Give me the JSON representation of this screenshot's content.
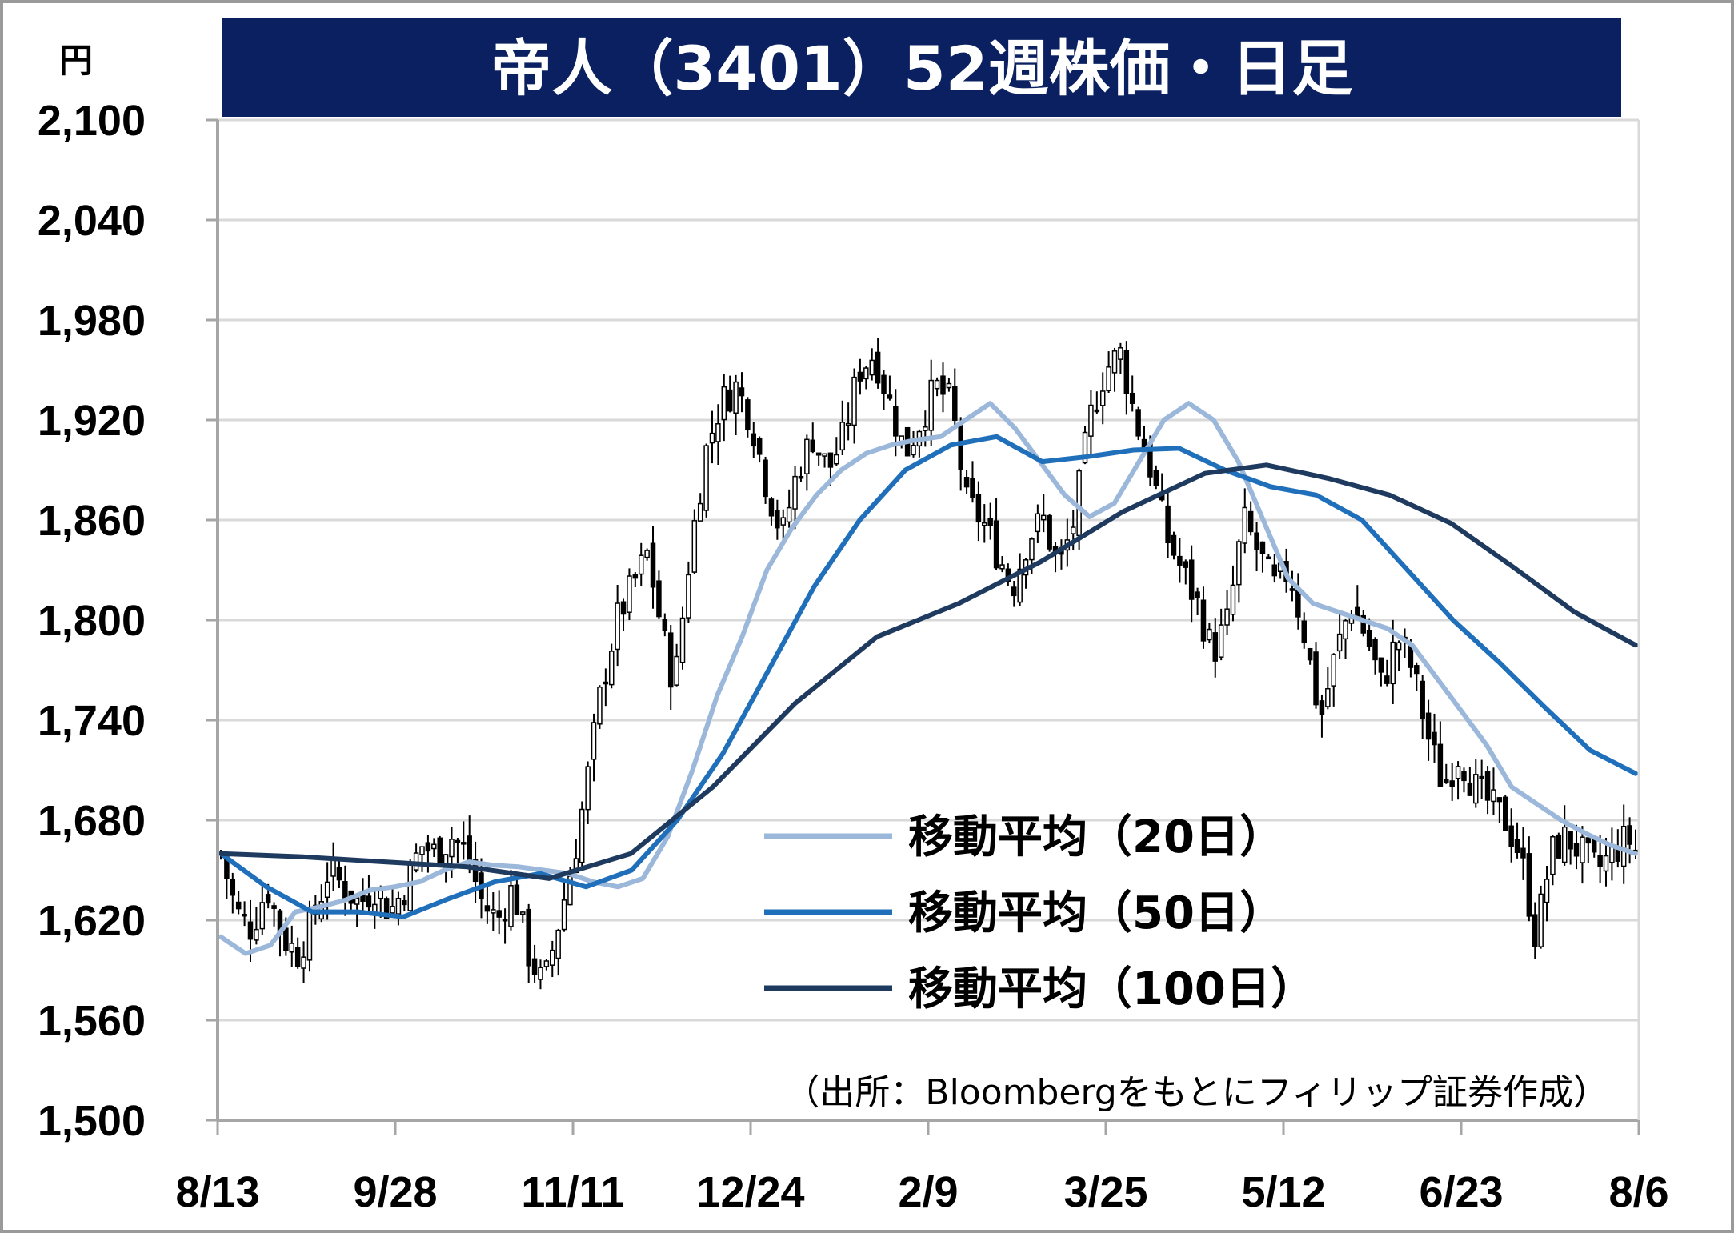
{
  "chart_data": {
    "type": "candlestick",
    "title": "帝人（3401）52週株価・日足",
    "unit_label": "円",
    "ylim": [
      1500,
      2100
    ],
    "y_ticks": [
      "2,100",
      "2,040",
      "1,980",
      "1,920",
      "1,860",
      "1,800",
      "1,740",
      "1,680",
      "1,620",
      "1,560",
      "1,500"
    ],
    "y_tick_values": [
      2100,
      2040,
      1980,
      1920,
      1860,
      1800,
      1740,
      1680,
      1620,
      1560,
      1500
    ],
    "x_ticks": [
      "8/13",
      "9/28",
      "11/11",
      "12/24",
      "2/9",
      "3/25",
      "5/12",
      "6/23",
      "8/6"
    ],
    "trading_days": 240,
    "close_path": [
      [
        0,
        1660
      ],
      [
        4,
        1625
      ],
      [
        8,
        1615
      ],
      [
        12,
        1640
      ],
      [
        16,
        1610
      ],
      [
        20,
        1600
      ],
      [
        24,
        1620
      ],
      [
        28,
        1650
      ],
      [
        32,
        1640
      ],
      [
        36,
        1630
      ],
      [
        40,
        1640
      ],
      [
        44,
        1625
      ],
      [
        48,
        1640
      ],
      [
        52,
        1665
      ],
      [
        56,
        1660
      ],
      [
        60,
        1670
      ],
      [
        64,
        1660
      ],
      [
        68,
        1630
      ],
      [
        72,
        1620
      ],
      [
        76,
        1640
      ],
      [
        80,
        1600
      ],
      [
        84,
        1580
      ],
      [
        88,
        1620
      ],
      [
        92,
        1660
      ],
      [
        95,
        1700
      ],
      [
        99,
        1760
      ],
      [
        103,
        1800
      ],
      [
        107,
        1820
      ],
      [
        111,
        1840
      ],
      [
        115,
        1790
      ],
      [
        118,
        1760
      ],
      [
        122,
        1840
      ],
      [
        126,
        1900
      ],
      [
        130,
        1930
      ],
      [
        134,
        1940
      ],
      [
        138,
        1920
      ],
      [
        142,
        1880
      ],
      [
        146,
        1850
      ],
      [
        150,
        1890
      ],
      [
        154,
        1910
      ],
      [
        158,
        1890
      ],
      [
        162,
        1910
      ],
      [
        166,
        1950
      ],
      [
        170,
        1960
      ],
      [
        174,
        1930
      ],
      [
        178,
        1900
      ],
      [
        182,
        1920
      ],
      [
        186,
        1940
      ],
      [
        190,
        1930
      ],
      [
        194,
        1870
      ],
      [
        198,
        1860
      ],
      [
        202,
        1840
      ],
      [
        206,
        1820
      ],
      [
        210,
        1850
      ],
      [
        214,
        1860
      ],
      [
        218,
        1830
      ],
      [
        222,
        1860
      ],
      [
        226,
        1920
      ],
      [
        230,
        1950
      ],
      [
        234,
        1960
      ],
      [
        238,
        1920
      ],
      [
        242,
        1890
      ],
      [
        246,
        1850
      ],
      [
        250,
        1830
      ],
      [
        254,
        1810
      ],
      [
        258,
        1780
      ],
      [
        262,
        1800
      ],
      [
        266,
        1860
      ],
      [
        270,
        1840
      ],
      [
        274,
        1820
      ],
      [
        278,
        1830
      ],
      [
        282,
        1790
      ],
      [
        286,
        1740
      ],
      [
        290,
        1780
      ],
      [
        294,
        1810
      ],
      [
        298,
        1790
      ],
      [
        302,
        1760
      ],
      [
        306,
        1790
      ],
      [
        310,
        1770
      ],
      [
        314,
        1730
      ],
      [
        318,
        1700
      ],
      [
        322,
        1720
      ],
      [
        326,
        1700
      ],
      [
        330,
        1690
      ],
      [
        334,
        1680
      ],
      [
        338,
        1660
      ],
      [
        342,
        1610
      ],
      [
        346,
        1660
      ],
      [
        350,
        1670
      ],
      [
        354,
        1660
      ],
      [
        358,
        1650
      ],
      [
        362,
        1660
      ],
      [
        366,
        1670
      ],
      [
        368,
        1660
      ]
    ],
    "series": [
      {
        "name": "移動平均（20日）",
        "color": "#9bb7da",
        "points": [
          [
            0,
            1610
          ],
          [
            5,
            1600
          ],
          [
            10,
            1605
          ],
          [
            15,
            1625
          ],
          [
            20,
            1628
          ],
          [
            25,
            1632
          ],
          [
            30,
            1638
          ],
          [
            35,
            1640
          ],
          [
            40,
            1643
          ],
          [
            45,
            1650
          ],
          [
            50,
            1655
          ],
          [
            55,
            1653
          ],
          [
            60,
            1652
          ],
          [
            65,
            1650
          ],
          [
            70,
            1648
          ],
          [
            75,
            1643
          ],
          [
            80,
            1640
          ],
          [
            85,
            1645
          ],
          [
            90,
            1670
          ],
          [
            95,
            1710
          ],
          [
            100,
            1755
          ],
          [
            105,
            1790
          ],
          [
            110,
            1830
          ],
          [
            115,
            1855
          ],
          [
            120,
            1875
          ],
          [
            125,
            1890
          ],
          [
            130,
            1900
          ],
          [
            135,
            1905
          ],
          [
            140,
            1908
          ],
          [
            145,
            1910
          ],
          [
            150,
            1920
          ],
          [
            155,
            1930
          ],
          [
            160,
            1915
          ],
          [
            165,
            1895
          ],
          [
            170,
            1875
          ],
          [
            175,
            1862
          ],
          [
            180,
            1870
          ],
          [
            185,
            1895
          ],
          [
            190,
            1920
          ],
          [
            195,
            1930
          ],
          [
            200,
            1920
          ],
          [
            205,
            1895
          ],
          [
            210,
            1860
          ],
          [
            215,
            1825
          ],
          [
            220,
            1810
          ],
          [
            225,
            1805
          ],
          [
            230,
            1800
          ],
          [
            235,
            1795
          ],
          [
            240,
            1785
          ],
          [
            245,
            1765
          ],
          [
            250,
            1745
          ],
          [
            255,
            1725
          ],
          [
            260,
            1700
          ],
          [
            265,
            1690
          ],
          [
            270,
            1680
          ],
          [
            275,
            1672
          ],
          [
            280,
            1665
          ],
          [
            285,
            1660
          ]
        ]
      },
      {
        "name": "移動平均（50日）",
        "color": "#1f6fba",
        "points": [
          [
            0,
            1660
          ],
          [
            10,
            1640
          ],
          [
            20,
            1625
          ],
          [
            30,
            1625
          ],
          [
            40,
            1622
          ],
          [
            50,
            1633
          ],
          [
            60,
            1643
          ],
          [
            70,
            1648
          ],
          [
            80,
            1640
          ],
          [
            90,
            1650
          ],
          [
            100,
            1680
          ],
          [
            110,
            1720
          ],
          [
            120,
            1770
          ],
          [
            130,
            1820
          ],
          [
            140,
            1860
          ],
          [
            150,
            1890
          ],
          [
            160,
            1905
          ],
          [
            170,
            1910
          ],
          [
            180,
            1895
          ],
          [
            190,
            1898
          ],
          [
            200,
            1902
          ],
          [
            210,
            1903
          ],
          [
            220,
            1890
          ],
          [
            230,
            1880
          ],
          [
            240,
            1875
          ],
          [
            250,
            1860
          ],
          [
            260,
            1830
          ],
          [
            270,
            1800
          ],
          [
            280,
            1775
          ],
          [
            290,
            1748
          ],
          [
            300,
            1722
          ],
          [
            310,
            1708
          ]
        ]
      },
      {
        "name": "移動平均（100日）",
        "color": "#1f3a5f",
        "points": [
          [
            0,
            1660
          ],
          [
            20,
            1658
          ],
          [
            40,
            1655
          ],
          [
            60,
            1652
          ],
          [
            80,
            1645
          ],
          [
            100,
            1660
          ],
          [
            120,
            1700
          ],
          [
            140,
            1750
          ],
          [
            160,
            1790
          ],
          [
            180,
            1810
          ],
          [
            200,
            1835
          ],
          [
            220,
            1865
          ],
          [
            240,
            1888
          ],
          [
            255,
            1893
          ],
          [
            270,
            1885
          ],
          [
            285,
            1875
          ],
          [
            300,
            1858
          ],
          [
            315,
            1832
          ],
          [
            330,
            1805
          ],
          [
            345,
            1785
          ]
        ]
      }
    ],
    "legend_placement": "center-right",
    "source_note": "（出所：Bloombergをもとにフィリップ証券作成）",
    "grid": true
  }
}
